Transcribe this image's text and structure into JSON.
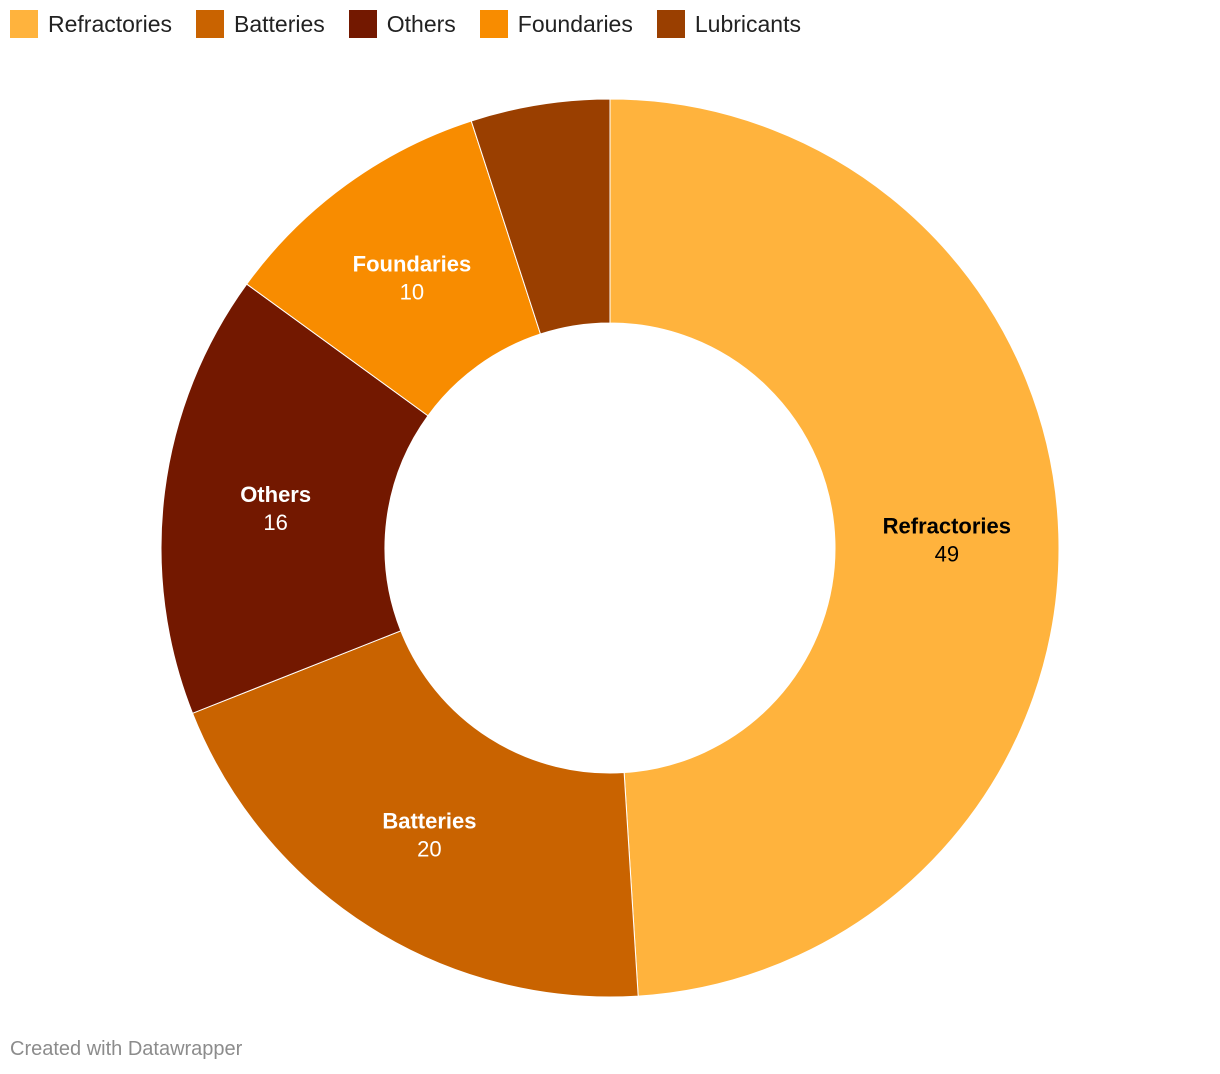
{
  "chart_data": {
    "type": "pie",
    "subtype": "donut",
    "categories": [
      "Refractories",
      "Batteries",
      "Others",
      "Foundaries",
      "Lubricants"
    ],
    "values": [
      49,
      20,
      16,
      10,
      5
    ],
    "value_labels": [
      "49",
      "20",
      "16",
      "10",
      ""
    ],
    "colors": [
      "#ffb33d",
      "#c96300",
      "#731800",
      "#f88c00",
      "#9a3f00"
    ],
    "label_colors": [
      "#000000",
      "#ffffff",
      "#ffffff",
      "#ffffff",
      "#ffffff"
    ],
    "legend_position": "top-left"
  },
  "footer": {
    "credit": "Created with Datawrapper"
  }
}
